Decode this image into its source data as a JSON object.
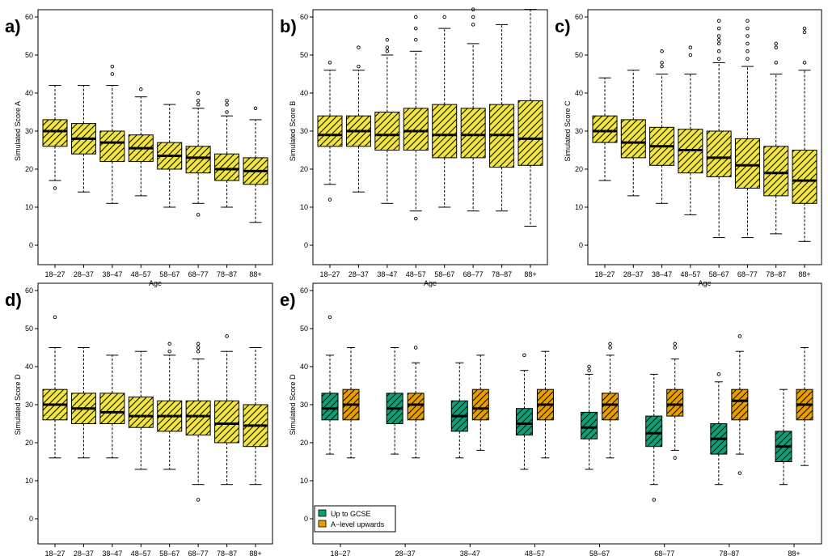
{
  "figure": {
    "colors": {
      "yellow": "#f0e442",
      "green": "#109e77",
      "orange": "#e69f00",
      "stroke": "#000000",
      "background": "#ffffff"
    }
  },
  "chart_data": [
    {
      "id": "a",
      "type": "box",
      "panel_label": "a)",
      "xlabel": "Age",
      "ylabel": "Simulated Score A",
      "ylim": [
        0,
        60
      ],
      "yticks": [
        "0",
        "10",
        "20",
        "30",
        "40",
        "50",
        "60"
      ],
      "categories": [
        "18–27",
        "28–37",
        "38–47",
        "48–57",
        "58–67",
        "68–77",
        "78–87",
        "88+"
      ],
      "series": [
        {
          "name": "Score A",
          "color": "#f0e442",
          "boxes": [
            {
              "q1": 26,
              "median": 30,
              "q3": 33,
              "whisker_low": 17,
              "whisker_high": 42,
              "outliers": [
                15
              ]
            },
            {
              "q1": 24,
              "median": 28,
              "q3": 32,
              "whisker_low": 14,
              "whisker_high": 42,
              "outliers": []
            },
            {
              "q1": 22,
              "median": 27,
              "q3": 30,
              "whisker_low": 11,
              "whisker_high": 42,
              "outliers": [
                45,
                47
              ]
            },
            {
              "q1": 22,
              "median": 25.5,
              "q3": 29,
              "whisker_low": 13,
              "whisker_high": 39,
              "outliers": [
                41
              ]
            },
            {
              "q1": 20,
              "median": 23.5,
              "q3": 27,
              "whisker_low": 10,
              "whisker_high": 37,
              "outliers": []
            },
            {
              "q1": 19,
              "median": 23,
              "q3": 26,
              "whisker_low": 11,
              "whisker_high": 36,
              "outliers": [
                8,
                37,
                38,
                40
              ]
            },
            {
              "q1": 17,
              "median": 20,
              "q3": 24,
              "whisker_low": 10,
              "whisker_high": 34,
              "outliers": [
                35,
                37,
                38
              ]
            },
            {
              "q1": 16,
              "median": 19.5,
              "q3": 23,
              "whisker_low": 6,
              "whisker_high": 33,
              "outliers": [
                36
              ]
            }
          ]
        }
      ]
    },
    {
      "id": "b",
      "type": "box",
      "panel_label": "b)",
      "xlabel": "Age",
      "ylabel": "Simulated Score B",
      "ylim": [
        0,
        60
      ],
      "yticks": [
        "0",
        "10",
        "20",
        "30",
        "40",
        "50",
        "60"
      ],
      "categories": [
        "18–27",
        "28–37",
        "38–47",
        "48–57",
        "58–67",
        "68–77",
        "78–87",
        "88+"
      ],
      "series": [
        {
          "name": "Score B",
          "color": "#f0e442",
          "boxes": [
            {
              "q1": 26,
              "median": 29,
              "q3": 34,
              "whisker_low": 16,
              "whisker_high": 46,
              "outliers": [
                12,
                48
              ]
            },
            {
              "q1": 26,
              "median": 30,
              "q3": 34,
              "whisker_low": 14,
              "whisker_high": 46,
              "outliers": [
                47,
                52
              ]
            },
            {
              "q1": 25,
              "median": 29,
              "q3": 35,
              "whisker_low": 11,
              "whisker_high": 50,
              "outliers": [
                51,
                52,
                54
              ]
            },
            {
              "q1": 25,
              "median": 30,
              "q3": 36,
              "whisker_low": 9,
              "whisker_high": 51,
              "outliers": [
                7,
                54,
                57,
                60
              ]
            },
            {
              "q1": 23,
              "median": 29,
              "q3": 37,
              "whisker_low": 10,
              "whisker_high": 57,
              "outliers": [
                60
              ]
            },
            {
              "q1": 23,
              "median": 29,
              "q3": 36,
              "whisker_low": 9,
              "whisker_high": 53,
              "outliers": [
                58,
                60,
                62
              ]
            },
            {
              "q1": 20.5,
              "median": 29,
              "q3": 37,
              "whisker_low": 9,
              "whisker_high": 58,
              "outliers": []
            },
            {
              "q1": 21,
              "median": 28,
              "q3": 38,
              "whisker_low": 5,
              "whisker_high": 62,
              "outliers": []
            }
          ]
        }
      ]
    },
    {
      "id": "c",
      "type": "box",
      "panel_label": "c)",
      "xlabel": "Age",
      "ylabel": "Simulated Score C",
      "ylim": [
        0,
        60
      ],
      "yticks": [
        "0",
        "10",
        "20",
        "30",
        "40",
        "50",
        "60"
      ],
      "categories": [
        "18–27",
        "28–37",
        "38–47",
        "48–57",
        "58–67",
        "68–77",
        "78–87",
        "88+"
      ],
      "series": [
        {
          "name": "Score C",
          "color": "#f0e442",
          "boxes": [
            {
              "q1": 27,
              "median": 30,
              "q3": 34,
              "whisker_low": 17,
              "whisker_high": 44,
              "outliers": []
            },
            {
              "q1": 23,
              "median": 27,
              "q3": 33,
              "whisker_low": 13,
              "whisker_high": 46,
              "outliers": []
            },
            {
              "q1": 21,
              "median": 26,
              "q3": 31,
              "whisker_low": 11,
              "whisker_high": 45,
              "outliers": [
                47,
                48,
                51
              ]
            },
            {
              "q1": 19,
              "median": 25,
              "q3": 30.5,
              "whisker_low": 8,
              "whisker_high": 45,
              "outliers": [
                50,
                52
              ]
            },
            {
              "q1": 18,
              "median": 23,
              "q3": 30,
              "whisker_low": 2,
              "whisker_high": 48,
              "outliers": [
                49,
                51,
                53,
                54,
                55,
                57,
                59
              ]
            },
            {
              "q1": 15,
              "median": 21,
              "q3": 28,
              "whisker_low": 2,
              "whisker_high": 47,
              "outliers": [
                49,
                51,
                53,
                55,
                57,
                59
              ]
            },
            {
              "q1": 13,
              "median": 19,
              "q3": 26,
              "whisker_low": 3,
              "whisker_high": 45,
              "outliers": [
                48,
                52,
                53
              ]
            },
            {
              "q1": 11,
              "median": 17,
              "q3": 25,
              "whisker_low": 1,
              "whisker_high": 46,
              "outliers": [
                48,
                56,
                57
              ]
            }
          ]
        }
      ]
    },
    {
      "id": "d",
      "type": "box",
      "panel_label": "d)",
      "xlabel": "Age",
      "ylabel": "Simulated Score D",
      "ylim": [
        0,
        60
      ],
      "yticks": [
        "0",
        "10",
        "20",
        "30",
        "40",
        "50",
        "60"
      ],
      "categories": [
        "18–27",
        "28–37",
        "38–47",
        "48–57",
        "58–67",
        "68–77",
        "78–87",
        "88+"
      ],
      "series": [
        {
          "name": "Score D",
          "color": "#f0e442",
          "boxes": [
            {
              "q1": 26,
              "median": 30,
              "q3": 34,
              "whisker_low": 16,
              "whisker_high": 45,
              "outliers": [
                53
              ]
            },
            {
              "q1": 25,
              "median": 29,
              "q3": 33,
              "whisker_low": 16,
              "whisker_high": 45,
              "outliers": []
            },
            {
              "q1": 25,
              "median": 28,
              "q3": 33,
              "whisker_low": 16,
              "whisker_high": 43,
              "outliers": []
            },
            {
              "q1": 24,
              "median": 27,
              "q3": 32,
              "whisker_low": 13,
              "whisker_high": 44,
              "outliers": []
            },
            {
              "q1": 23,
              "median": 27,
              "q3": 31,
              "whisker_low": 13,
              "whisker_high": 43,
              "outliers": [
                44,
                46
              ]
            },
            {
              "q1": 22,
              "median": 27,
              "q3": 31,
              "whisker_low": 9,
              "whisker_high": 42,
              "outliers": [
                5,
                44,
                45,
                46
              ]
            },
            {
              "q1": 20,
              "median": 25,
              "q3": 31,
              "whisker_low": 9,
              "whisker_high": 44,
              "outliers": [
                48
              ]
            },
            {
              "q1": 19,
              "median": 24.5,
              "q3": 30,
              "whisker_low": 9,
              "whisker_high": 45,
              "outliers": []
            }
          ]
        }
      ]
    },
    {
      "id": "e",
      "type": "box",
      "panel_label": "e)",
      "xlabel": "Age",
      "ylabel": "Simulated Score D",
      "ylim": [
        0,
        60
      ],
      "yticks": [
        "0",
        "10",
        "20",
        "30",
        "40",
        "50",
        "60"
      ],
      "categories": [
        "18–27",
        "28–37",
        "38–47",
        "48–57",
        "58–67",
        "68–77",
        "78–87",
        "88+"
      ],
      "legend": {
        "position": "bottom-left"
      },
      "series": [
        {
          "name": "Up to GCSE",
          "color": "#109e77",
          "boxes": [
            {
              "q1": 26,
              "median": 29,
              "q3": 33,
              "whisker_low": 17,
              "whisker_high": 43,
              "outliers": [
                53
              ]
            },
            {
              "q1": 25,
              "median": 29,
              "q3": 33,
              "whisker_low": 17,
              "whisker_high": 45,
              "outliers": []
            },
            {
              "q1": 23,
              "median": 27,
              "q3": 31,
              "whisker_low": 16,
              "whisker_high": 41,
              "outliers": []
            },
            {
              "q1": 22,
              "median": 25,
              "q3": 29,
              "whisker_low": 13,
              "whisker_high": 39,
              "outliers": [
                43
              ]
            },
            {
              "q1": 21,
              "median": 24,
              "q3": 28,
              "whisker_low": 13,
              "whisker_high": 38,
              "outliers": [
                39,
                40
              ]
            },
            {
              "q1": 19,
              "median": 22.5,
              "q3": 27,
              "whisker_low": 9,
              "whisker_high": 38,
              "outliers": [
                5
              ]
            },
            {
              "q1": 17,
              "median": 21,
              "q3": 25,
              "whisker_low": 9,
              "whisker_high": 36,
              "outliers": [
                38
              ]
            },
            {
              "q1": 15,
              "median": 19,
              "q3": 23,
              "whisker_low": 9,
              "whisker_high": 34,
              "outliers": []
            }
          ]
        },
        {
          "name": "A−level upwards",
          "color": "#e69f00",
          "boxes": [
            {
              "q1": 26,
              "median": 30,
              "q3": 34,
              "whisker_low": 16,
              "whisker_high": 45,
              "outliers": []
            },
            {
              "q1": 26,
              "median": 30,
              "q3": 33,
              "whisker_low": 16,
              "whisker_high": 41,
              "outliers": [
                45
              ]
            },
            {
              "q1": 26,
              "median": 29,
              "q3": 34,
              "whisker_low": 18,
              "whisker_high": 43,
              "outliers": []
            },
            {
              "q1": 26,
              "median": 30,
              "q3": 34,
              "whisker_low": 16,
              "whisker_high": 44,
              "outliers": []
            },
            {
              "q1": 26,
              "median": 30,
              "q3": 33,
              "whisker_low": 16,
              "whisker_high": 43,
              "outliers": [
                45,
                46
              ]
            },
            {
              "q1": 27,
              "median": 30,
              "q3": 34,
              "whisker_low": 18,
              "whisker_high": 42,
              "outliers": [
                16,
                45,
                46
              ]
            },
            {
              "q1": 26,
              "median": 31,
              "q3": 34,
              "whisker_low": 17,
              "whisker_high": 44,
              "outliers": [
                12,
                48
              ]
            },
            {
              "q1": 26,
              "median": 30,
              "q3": 34,
              "whisker_low": 14,
              "whisker_high": 45,
              "outliers": []
            }
          ]
        }
      ]
    }
  ]
}
